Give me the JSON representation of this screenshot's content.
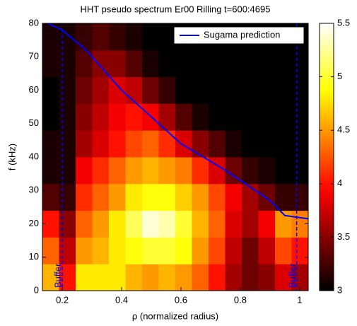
{
  "chart_data": {
    "type": "heatmap",
    "title": "HHT pseudo spectrum Er00 Rilling t=600:4695",
    "x_label": "ρ (normalized radius)",
    "y_label": "f (kHz)",
    "xlim": [
      0.133,
      1.029
    ],
    "ylim": [
      0,
      80
    ],
    "xticks": [
      0.2,
      0.4,
      0.6,
      0.8,
      1
    ],
    "yticks": [
      0,
      10,
      20,
      30,
      40,
      50,
      60,
      70,
      80
    ],
    "clim": [
      3,
      5.5
    ],
    "colorbar_ticks": [
      3,
      3.5,
      4,
      4.5,
      5,
      5.5
    ],
    "colormap": "hot",
    "z": [
      [
        4.6,
        4.0,
        4.8,
        4.8,
        4.8,
        4.6,
        4.5,
        4.6,
        4.5,
        4.3,
        4.0,
        3.6,
        3.4,
        3.5,
        3.8,
        3.6
      ],
      [
        4.3,
        3.7,
        4.5,
        4.6,
        4.8,
        4.9,
        5.0,
        5.0,
        4.9,
        4.5,
        4.2,
        3.7,
        3.4,
        3.7,
        4.2,
        4.0
      ],
      [
        4.0,
        3.5,
        4.3,
        4.5,
        4.8,
        5.1,
        5.4,
        5.3,
        5.0,
        4.6,
        4.3,
        3.8,
        3.6,
        3.9,
        4.5,
        4.4
      ],
      [
        3.3,
        3.2,
        4.1,
        4.3,
        4.5,
        4.8,
        4.9,
        4.9,
        4.7,
        4.5,
        4.2,
        3.9,
        3.6,
        3.4,
        3.2,
        3.2
      ],
      [
        3.1,
        3.1,
        3.9,
        4.1,
        4.3,
        4.5,
        4.6,
        4.5,
        4.4,
        4.1,
        3.8,
        3.4,
        3.2,
        3.1,
        3.0,
        3.0
      ],
      [
        3.1,
        3.1,
        3.6,
        3.8,
        4.0,
        4.2,
        4.3,
        4.1,
        3.8,
        3.5,
        3.3,
        3.1,
        3.0,
        3.0,
        3.0,
        3.0
      ],
      [
        3.0,
        3.1,
        3.5,
        3.7,
        3.9,
        4.0,
        3.9,
        3.6,
        3.3,
        3.1,
        3.0,
        3.0,
        3.0,
        3.0,
        3.0,
        3.0
      ],
      [
        3.0,
        3.1,
        3.4,
        3.6,
        3.8,
        3.7,
        3.4,
        3.2,
        3.0,
        3.0,
        3.0,
        3.0,
        3.0,
        3.0,
        3.0,
        3.0
      ],
      [
        3.1,
        3.1,
        3.3,
        3.5,
        3.5,
        3.3,
        3.1,
        3.0,
        3.0,
        3.0,
        3.0,
        3.0,
        3.0,
        3.0,
        3.0,
        3.0
      ],
      [
        3.1,
        3.1,
        3.2,
        3.3,
        3.2,
        3.1,
        3.0,
        3.0,
        3.0,
        3.0,
        3.0,
        3.0,
        3.0,
        3.0,
        3.0,
        3.0
      ]
    ],
    "series": [
      {
        "name": "Sugama prediction",
        "color": "#0000ff",
        "x": [
          0.15,
          0.2,
          0.28,
          0.4,
          0.5,
          0.6,
          0.75,
          0.9,
          0.95,
          1.029
        ],
        "values": [
          80,
          78,
          72,
          60,
          52,
          44,
          36,
          27,
          22.5,
          21.5
        ]
      }
    ],
    "vlines": [
      {
        "x": 0.2,
        "label": "Buffer",
        "color": "#0000ff"
      },
      {
        "x": 0.99,
        "label": "Buffer",
        "color": "#0000ff"
      }
    ],
    "legend": "upper right"
  }
}
